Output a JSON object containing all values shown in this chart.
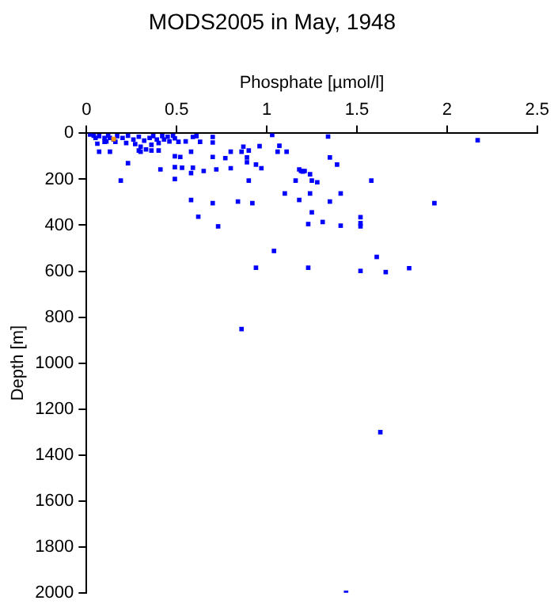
{
  "chart_data": {
    "type": "scatter",
    "title": "MODS2005 in May, 1948",
    "xlabel": "Phosphate [µmol/l]",
    "ylabel": "Depth [m]",
    "xlim": [
      0,
      2.5
    ],
    "xticks": [
      0,
      0.5,
      1,
      1.5,
      2,
      2.5
    ],
    "ylim": [
      2000,
      0
    ],
    "yticks": [
      0,
      200,
      400,
      600,
      800,
      1000,
      1200,
      1400,
      1600,
      1800,
      2000
    ],
    "grid": false,
    "legend": false,
    "marker": "square",
    "series": [
      {
        "color": "#0000ff",
        "x": [
          0.07,
          0.13,
          0.23,
          0.19,
          0.41,
          0.49,
          0.49,
          0.53,
          0.59,
          0.58,
          0.65,
          0.72,
          0.8,
          0.58,
          0.7,
          0.62,
          0.73,
          0.84,
          0.92,
          0.9,
          0.97,
          0.94,
          1.04,
          1.23,
          1.23,
          1.1,
          1.18,
          1.25,
          1.24,
          1.16,
          1.25,
          1.18,
          1.21,
          1.24,
          1.06,
          1.11,
          1.07,
          0.94,
          0.89,
          0.89,
          0.86,
          0.9,
          0.96,
          0.87,
          0.8,
          0.77,
          0.7,
          0.63,
          0.7,
          0.7,
          0.59,
          0.61,
          1.03,
          0.58,
          0.52,
          0.49,
          0.55,
          2.17,
          1.93,
          1.58,
          1.52,
          1.52,
          1.52,
          1.41,
          1.61,
          1.79,
          1.66,
          1.52,
          1.31,
          1.35,
          1.41,
          1.39,
          1.35,
          1.28,
          1.19,
          1.2,
          1.34,
          0.86,
          1.63,
          1.44,
          0.02,
          0.04,
          0.05,
          0.07,
          0.1,
          0.11,
          0.12,
          0.15,
          0.16,
          0.17,
          0.2,
          0.22,
          0.23,
          0.26,
          0.27,
          0.29,
          0.3,
          0.32,
          0.33,
          0.35,
          0.36,
          0.37,
          0.39,
          0.4,
          0.42,
          0.43,
          0.45,
          0.46,
          0.48,
          0.49,
          0.51,
          0.3,
          0.36,
          0.4,
          0.29,
          0.1,
          0.13,
          0.06
        ],
        "values": [
          80,
          80,
          130,
          206,
          157,
          147,
          199,
          150,
          150,
          173,
          164,
          157,
          152,
          290,
          304,
          363,
          405,
          297,
          304,
          206,
          152,
          585,
          512,
          585,
          395,
          262,
          290,
          344,
          262,
          206,
          206,
          157,
          164,
          178,
          80,
          80,
          54,
          136,
          105,
          126,
          80,
          75,
          56,
          58,
          80,
          108,
          103,
          37,
          40,
          16,
          16,
          12,
          7,
          80,
          103,
          100,
          35,
          30,
          304,
          206,
          365,
          391,
          405,
          402,
          538,
          587,
          604,
          599,
          386,
          297,
          262,
          136,
          105,
          213,
          164,
          166,
          14,
          852,
          1301,
          2000,
          5,
          10,
          20,
          12,
          20,
          35,
          10,
          27,
          37,
          12,
          20,
          42,
          10,
          27,
          47,
          15,
          58,
          32,
          70,
          20,
          50,
          12,
          27,
          42,
          12,
          27,
          15,
          35,
          10,
          22,
          37,
          80,
          75,
          75,
          75,
          37,
          20,
          45
        ]
      },
      {
        "color": "#ff9900",
        "x": [
          0.15
        ],
        "values": [
          25
        ]
      }
    ]
  }
}
